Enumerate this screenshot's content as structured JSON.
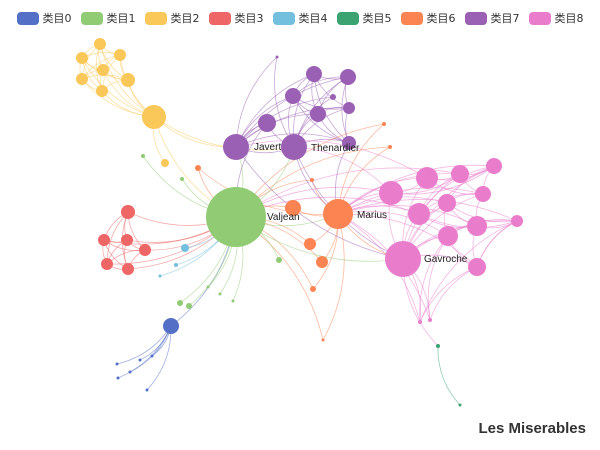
{
  "title": "Les Miserables",
  "legend": [
    {
      "label": "类目0",
      "color": "#5470c6"
    },
    {
      "label": "类目1",
      "color": "#91cc75"
    },
    {
      "label": "类目2",
      "color": "#fac858"
    },
    {
      "label": "类目3",
      "color": "#ee6666"
    },
    {
      "label": "类目4",
      "color": "#73c0de"
    },
    {
      "label": "类目5",
      "color": "#3ba272"
    },
    {
      "label": "类目6",
      "color": "#fc8452"
    },
    {
      "label": "类目7",
      "color": "#9a60b4"
    },
    {
      "label": "类目8",
      "color": "#ea7ccc"
    }
  ],
  "node_labels": {
    "valjean": "Valjean",
    "javert": "Javert",
    "thenardier": "Thenardier",
    "marius": "Marius",
    "gavroche": "Gavroche"
  }
}
